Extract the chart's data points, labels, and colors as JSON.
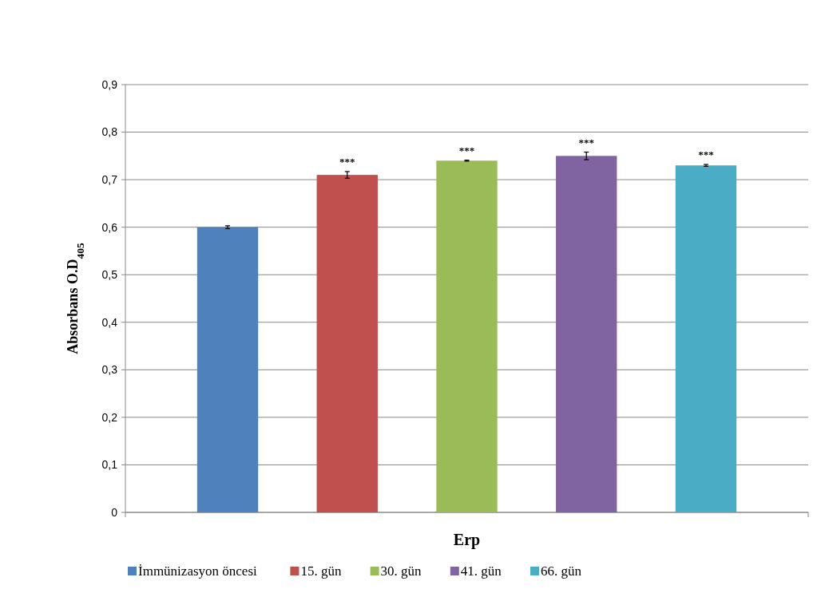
{
  "chart_data": {
    "type": "bar",
    "xlabel": "Erp",
    "ylabel": "Absorbans O.D$_{405}$",
    "categories": [
      null
    ],
    "series": [
      {
        "name": "İmmünizasyon öncesi",
        "color": "#4f81bd",
        "values": [
          0.6
        ],
        "errors": [
          0.003
        ]
      },
      {
        "name": "15. gün",
        "color": "#c0504d",
        "values": [
          0.71
        ],
        "errors": [
          0.007
        ]
      },
      {
        "name": "30. gün",
        "color": "#9bbb59",
        "values": [
          0.74
        ],
        "errors": [
          0.001
        ]
      },
      {
        "name": "41. gün",
        "color": "#8064a2",
        "values": [
          0.75
        ],
        "errors": [
          0.008
        ]
      },
      {
        "name": "66. gün",
        "color": "#4bacc6",
        "values": [
          0.73
        ],
        "errors": [
          0.002
        ]
      }
    ],
    "annotations": [
      "***",
      "***",
      "***",
      "***"
    ],
    "ylim": [
      0,
      0.9
    ],
    "yticks": [
      {
        "value": 0,
        "label": "0"
      },
      {
        "value": 0.1,
        "label": "0,1"
      },
      {
        "value": 0.2,
        "label": "0,2"
      },
      {
        "value": 0.3,
        "label": "0,3"
      },
      {
        "value": 0.4,
        "label": "0,4"
      },
      {
        "value": 0.5,
        "label": "0,5"
      },
      {
        "value": 0.6,
        "label": "0,6"
      },
      {
        "value": 0.7,
        "label": "0,7"
      },
      {
        "value": 0.8,
        "label": "0,8"
      },
      {
        "value": 0.9,
        "label": "0,9"
      }
    ],
    "grid": "y",
    "legend": "bottom"
  }
}
